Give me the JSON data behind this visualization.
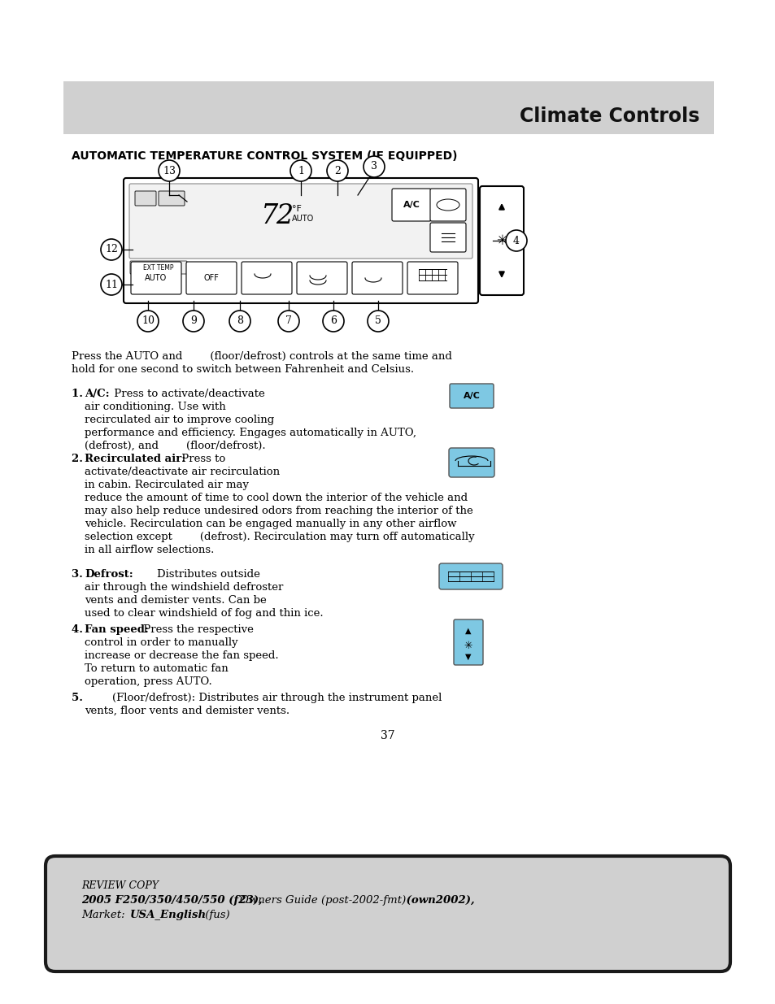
{
  "page_bg": "#ffffff",
  "header_bg": "#d0d0d0",
  "header_text": "Climate Controls",
  "section_title": "AUTOMATIC TEMPERATURE CONTROL SYSTEM (IF EQUIPPED)",
  "body_text_color": "#000000",
  "footer_bg": "#d0d0d0",
  "footer_border": "#1a1a1a",
  "page_number": "37",
  "fig_w": 9.54,
  "fig_h": 12.35,
  "dpi": 100
}
